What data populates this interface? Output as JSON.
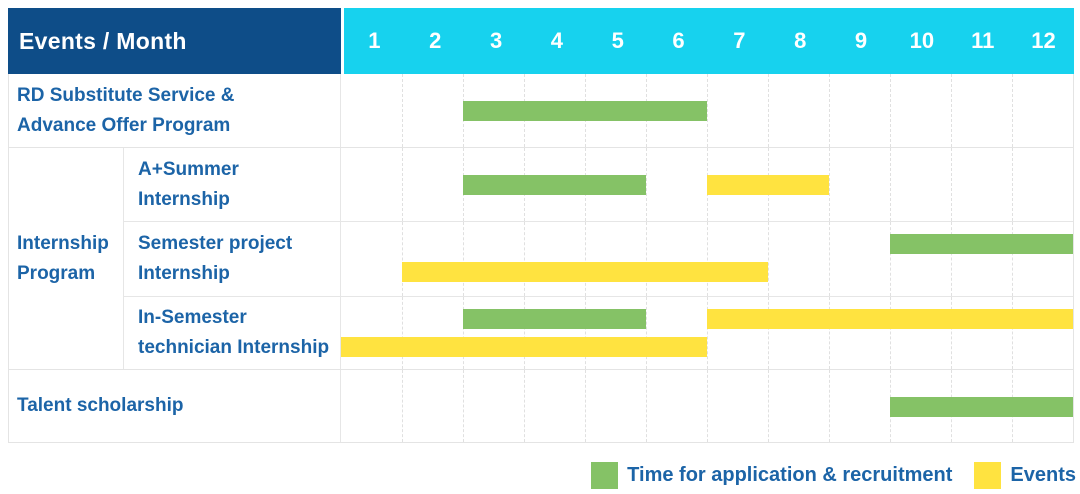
{
  "header": {
    "title": "Events / Month",
    "months": [
      "1",
      "2",
      "3",
      "4",
      "5",
      "6",
      "7",
      "8",
      "9",
      "10",
      "11",
      "12"
    ]
  },
  "colors": {
    "navy": "#0e4d88",
    "cyan": "#17d2ee",
    "label_blue": "#1c64a7",
    "green": "#85c266",
    "yellow": "#ffe340"
  },
  "legend": [
    {
      "color_key": "green",
      "color": "#85c266",
      "label": "Time for application & recruitment"
    },
    {
      "color_key": "yellow",
      "color": "#ffe340",
      "label": "Events"
    }
  ],
  "chart_data": {
    "type": "table",
    "subtype": "gantt-timeline",
    "title": "Events / Month",
    "x_axis": {
      "label": "Month",
      "ticks": [
        1,
        2,
        3,
        4,
        5,
        6,
        7,
        8,
        9,
        10,
        11,
        12
      ],
      "range": [
        1,
        12
      ],
      "grid": "dashed-vertical"
    },
    "series_legend": [
      {
        "name": "Time for application & recruitment",
        "color_key": "green"
      },
      {
        "name": "Events",
        "color_key": "yellow"
      }
    ],
    "rows": [
      {
        "label": "RD Substitute Service &\nAdvance Offer Program",
        "bars": [
          {
            "series": "Time for application & recruitment",
            "color": "green",
            "start_month": 3,
            "end_month": 6,
            "lane": "center"
          }
        ]
      },
      {
        "group": "Internship\nProgram",
        "label": "A+Summer\nInternship",
        "bars": [
          {
            "series": "Time for application & recruitment",
            "color": "green",
            "start_month": 3,
            "end_month": 5,
            "lane": "center"
          },
          {
            "series": "Events",
            "color": "yellow",
            "start_month": 7,
            "end_month": 8,
            "lane": "center"
          }
        ]
      },
      {
        "label": "Semester project\nInternship",
        "bars": [
          {
            "series": "Time for application & recruitment",
            "color": "green",
            "start_month": 10,
            "end_month": 12,
            "lane": "top"
          },
          {
            "series": "Events",
            "color": "yellow",
            "start_month": 2,
            "end_month": 7,
            "lane": "bottom"
          }
        ]
      },
      {
        "label": "In-Semester\ntechnician Internship",
        "bars": [
          {
            "series": "Time for application & recruitment",
            "color": "green",
            "start_month": 3,
            "end_month": 5,
            "lane": "top"
          },
          {
            "series": "Events",
            "color": "yellow",
            "start_month": 7,
            "end_month": 12,
            "lane": "top"
          },
          {
            "series": "Events",
            "color": "yellow",
            "start_month": 1,
            "end_month": 6,
            "lane": "bottom"
          }
        ]
      },
      {
        "label": "Talent scholarship",
        "bars": [
          {
            "series": "Time for application & recruitment",
            "color": "green",
            "start_month": 10,
            "end_month": 12,
            "lane": "center"
          }
        ]
      }
    ]
  }
}
